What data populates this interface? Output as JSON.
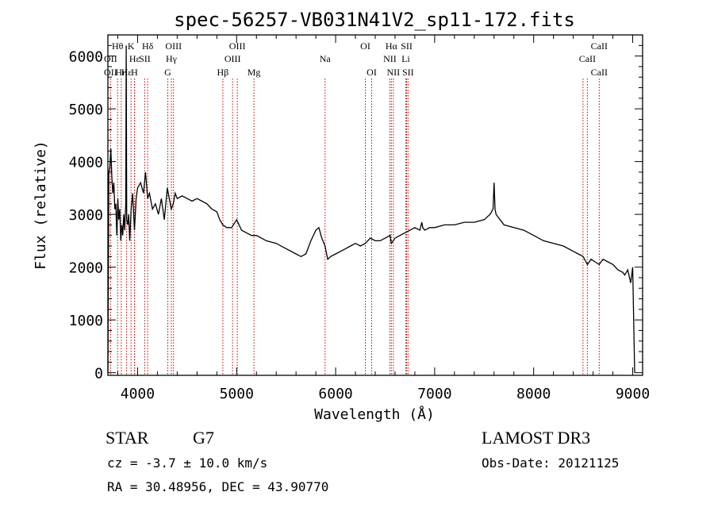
{
  "chart_data": {
    "type": "line",
    "title": "spec-56257-VB031N41V2_sp11-172.fits",
    "xlabel": "Wavelength (Å)",
    "ylabel": "Flux (relative)",
    "xlim": [
      3700,
      9100
    ],
    "ylim": [
      -50,
      6400
    ],
    "x_ticks": [
      4000,
      5000,
      6000,
      7000,
      8000,
      9000
    ],
    "x_tick_labels": [
      "4000",
      "5000",
      "6000",
      "7000",
      "8000",
      "9000"
    ],
    "y_ticks": [
      0,
      1000,
      2000,
      3000,
      4000,
      5000,
      6000
    ],
    "y_tick_labels": [
      "0",
      "1000",
      "2000",
      "3000",
      "4000",
      "5000",
      "6000"
    ],
    "grid": false,
    "series": [
      {
        "x": [
          3700,
          3710,
          3720,
          3730,
          3740,
          3750,
          3760,
          3770,
          3780,
          3790,
          3800,
          3810,
          3820,
          3830,
          3840,
          3850,
          3860,
          3870,
          3880,
          3885,
          3890,
          3900,
          3910,
          3920,
          3935,
          3950,
          3968,
          3985,
          4000,
          4030,
          4060,
          4080,
          4101,
          4120,
          4150,
          4180,
          4210,
          4240,
          4270,
          4300,
          4320,
          4340,
          4360,
          4380,
          4400,
          4450,
          4500,
          4550,
          4600,
          4650,
          4700,
          4750,
          4800,
          4830,
          4861,
          4900,
          4950,
          5000,
          5050,
          5100,
          5150,
          5200,
          5300,
          5400,
          5500,
          5600,
          5650,
          5700,
          5750,
          5800,
          5830,
          5860,
          5893,
          5920,
          5950,
          6000,
          6050,
          6100,
          6150,
          6200,
          6250,
          6300,
          6350,
          6400,
          6450,
          6500,
          6550,
          6563,
          6600,
          6650,
          6700,
          6750,
          6800,
          6850,
          6870,
          6880,
          6900,
          6950,
          7000,
          7100,
          7200,
          7300,
          7400,
          7500,
          7560,
          7590,
          7600,
          7610,
          7620,
          7640,
          7660,
          7700,
          7800,
          7900,
          8000,
          8100,
          8200,
          8300,
          8400,
          8450,
          8500,
          8542,
          8580,
          8620,
          8662,
          8700,
          8750,
          8800,
          8850,
          8900,
          8920,
          8950,
          8980,
          9000,
          9020
        ],
        "values": [
          0,
          3800,
          3900,
          4250,
          3700,
          3400,
          3600,
          3100,
          3200,
          2600,
          3300,
          2900,
          3100,
          2500,
          2800,
          2600,
          3000,
          2700,
          3200,
          6200,
          2900,
          2800,
          3000,
          2500,
          3100,
          3400,
          2700,
          3300,
          3500,
          3600,
          3400,
          3800,
          3300,
          3400,
          3100,
          3200,
          3000,
          3300,
          2900,
          3500,
          3300,
          3100,
          3200,
          3400,
          3300,
          3350,
          3300,
          3250,
          3300,
          3250,
          3200,
          3100,
          3050,
          2900,
          2800,
          2750,
          2750,
          2900,
          2700,
          2650,
          2600,
          2600,
          2500,
          2450,
          2350,
          2250,
          2200,
          2250,
          2500,
          2700,
          2750,
          2550,
          2400,
          2150,
          2200,
          2250,
          2300,
          2350,
          2400,
          2450,
          2400,
          2450,
          2550,
          2500,
          2500,
          2550,
          2600,
          2450,
          2550,
          2600,
          2650,
          2700,
          2750,
          2700,
          2850,
          2750,
          2700,
          2750,
          2750,
          2800,
          2800,
          2850,
          2850,
          2900,
          3000,
          3100,
          3600,
          3100,
          3000,
          2950,
          2900,
          2800,
          2750,
          2700,
          2600,
          2500,
          2450,
          2400,
          2300,
          2250,
          2200,
          2050,
          2150,
          2100,
          2050,
          2150,
          2100,
          2050,
          1950,
          1900,
          1850,
          1950,
          1700,
          2000,
          0
        ]
      }
    ],
    "line_markers": [
      {
        "label": "Hθ",
        "x": 3798,
        "row": 1
      },
      {
        "label": "OII",
        "x": 3727,
        "row": 2
      },
      {
        "label": "OII",
        "x": 3727,
        "row": 3
      },
      {
        "label": "Hε",
        "x": 3889,
        "row": 3
      },
      {
        "label": "Hη",
        "x": 3835,
        "row": 3
      },
      {
        "label": "K",
        "x": 3934,
        "row": 1
      },
      {
        "label": "Hε",
        "x": 3970,
        "row": 2
      },
      {
        "label": "H",
        "x": 3968,
        "row": 3
      },
      {
        "label": "SII",
        "x": 4072,
        "row": 2
      },
      {
        "label": "Hδ",
        "x": 4102,
        "row": 1
      },
      {
        "label": "OIII",
        "x": 4363,
        "row": 1
      },
      {
        "label": "Hγ",
        "x": 4341,
        "row": 2
      },
      {
        "label": "G",
        "x": 4305,
        "row": 3
      },
      {
        "label": "Hβ",
        "x": 4861,
        "row": 3
      },
      {
        "label": "OIII",
        "x": 5007,
        "row": 1
      },
      {
        "label": "OIII",
        "x": 4959,
        "row": 2
      },
      {
        "label": "Mg",
        "x": 5175,
        "row": 3
      },
      {
        "label": "Na",
        "x": 5893,
        "row": 2
      },
      {
        "label": "OI",
        "x": 6300,
        "row": 1
      },
      {
        "label": "OI",
        "x": 6364,
        "row": 3
      },
      {
        "label": "Hα",
        "x": 6563,
        "row": 1
      },
      {
        "label": "SII",
        "x": 6717,
        "row": 1
      },
      {
        "label": "NII",
        "x": 6548,
        "row": 2
      },
      {
        "label": "Li",
        "x": 6708,
        "row": 2
      },
      {
        "label": "NII",
        "x": 6583,
        "row": 3
      },
      {
        "label": "SII",
        "x": 6731,
        "row": 3
      },
      {
        "label": "CaII",
        "x": 8662,
        "row": 1
      },
      {
        "label": "CaII",
        "x": 8542,
        "row": 2
      },
      {
        "label": "CaII",
        "x": 8662,
        "row": 3
      },
      {
        "label": "",
        "x": 8498,
        "row": 0
      }
    ],
    "line_color": "#000000",
    "marker_color": "#c00000"
  },
  "info": {
    "class_label": "STAR",
    "subclass": "G7",
    "survey": "LAMOST DR3",
    "cz_text": "cz = -3.7 ± 10.0 km/s",
    "obs_date": "Obs-Date: 20121125",
    "radec": "RA =  30.48956, DEC =  43.90770"
  }
}
